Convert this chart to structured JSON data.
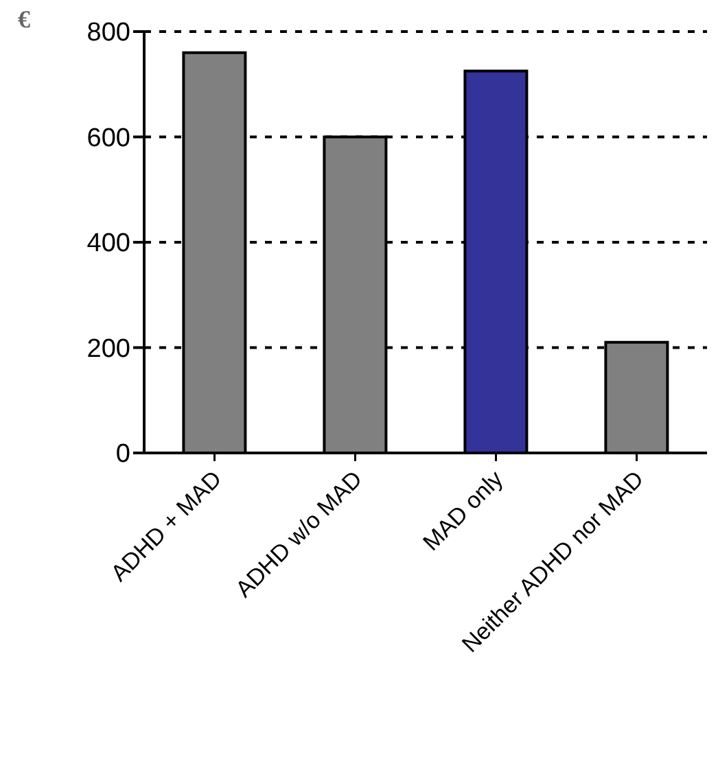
{
  "chart_data": {
    "type": "bar",
    "ylabel": "€",
    "categories": [
      "ADHD + MAD",
      "ADHD w/o MAD",
      "MAD only",
      "Neither ADHD nor MAD"
    ],
    "values": [
      760,
      600,
      725,
      210
    ],
    "colors": [
      "#808080",
      "#808080",
      "#333399",
      "#808080"
    ],
    "ylim": [
      0,
      800
    ],
    "yticks": [
      0,
      200,
      400,
      600,
      800
    ],
    "grid": "y"
  }
}
